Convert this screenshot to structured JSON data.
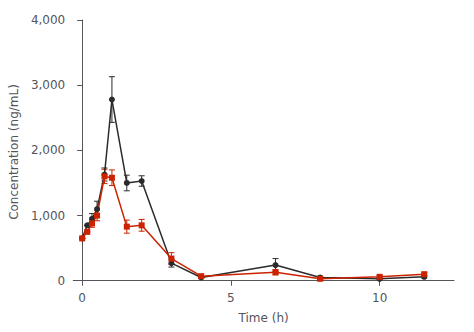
{
  "chart_data": {
    "type": "line",
    "xlabel": "Time (h)",
    "ylabel": "Concentration (ng/mL)",
    "x": [
      0,
      0.17,
      0.33,
      0.5,
      0.75,
      1.0,
      1.5,
      2.0,
      3.0,
      4.0,
      6.5,
      8.0,
      10.0,
      11.5
    ],
    "series": [
      {
        "color": "#2b2b2b",
        "marker": "circle",
        "values": [
          650,
          850,
          950,
          1100,
          1630,
          2780,
          1500,
          1530,
          270,
          50,
          240,
          50,
          30,
          60
        ],
        "yerr": [
          0,
          0,
          80,
          120,
          100,
          350,
          120,
          80,
          60,
          10,
          100,
          20,
          10,
          20
        ]
      },
      {
        "color": "#cc2200",
        "marker": "square",
        "values": [
          650,
          750,
          880,
          1000,
          1600,
          1580,
          830,
          850,
          340,
          70,
          130,
          30,
          60,
          100
        ],
        "yerr": [
          0,
          0,
          60,
          80,
          110,
          120,
          100,
          90,
          90,
          20,
          40,
          10,
          20,
          30
        ]
      }
    ],
    "xlim": [
      -0.3,
      12.5
    ],
    "ylim": [
      -50,
      4000
    ],
    "xticks": [
      0,
      5,
      10
    ],
    "yticks": [
      0,
      {
        "value": 1000,
        "label": "1,000"
      },
      {
        "value": 2000,
        "label": "2,000"
      },
      {
        "value": 3000,
        "label": "3,000"
      },
      {
        "value": 4000,
        "label": "4,000"
      }
    ],
    "grid": false
  }
}
